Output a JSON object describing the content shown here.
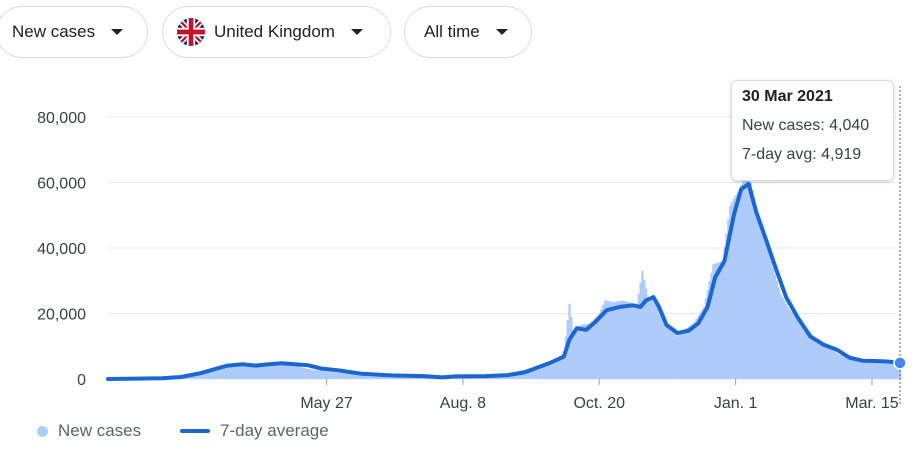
{
  "filters": {
    "metric": "New cases",
    "region": "United Kingdom",
    "range": "All time"
  },
  "tooltip": {
    "date": "30 Mar 2021",
    "new_cases_label": "New cases: ",
    "new_cases_value": "4,040",
    "avg_label": "7-day avg: ",
    "avg_value": "4,919"
  },
  "legend": {
    "bars": "New cases",
    "line": "7-day average"
  },
  "colors": {
    "bars": "#aecbfa",
    "line": "#1a67d2",
    "grid": "#e8eaed"
  },
  "chart_data": {
    "type": "bar",
    "ylim": [
      0,
      80000
    ],
    "ytick_values": [
      0,
      20000,
      40000,
      60000,
      80000
    ],
    "ytick_labels": [
      "0",
      "20,000",
      "40,000",
      "60,000",
      "80,000"
    ],
    "xrange": [
      "2020-01-31",
      "2021-03-30"
    ],
    "xticks": [
      {
        "date": "2020-05-27",
        "label": "May 27"
      },
      {
        "date": "2020-08-08",
        "label": "Aug. 8"
      },
      {
        "date": "2020-10-20",
        "label": "Oct. 20"
      },
      {
        "date": "2021-01-01",
        "label": "Jan. 1"
      },
      {
        "date": "2021-03-15",
        "label": "Mar. 15"
      }
    ],
    "series": [
      {
        "name": "New cases",
        "kind": "bar",
        "points": [
          [
            "2020-01-31",
            0
          ],
          [
            "2020-02-20",
            100
          ],
          [
            "2020-03-05",
            250
          ],
          [
            "2020-03-15",
            800
          ],
          [
            "2020-03-25",
            2200
          ],
          [
            "2020-04-04",
            3900
          ],
          [
            "2020-04-10",
            4700
          ],
          [
            "2020-04-18",
            4500
          ],
          [
            "2020-04-25",
            4300
          ],
          [
            "2020-05-01",
            5000
          ],
          [
            "2020-05-07",
            4700
          ],
          [
            "2020-05-13",
            3600
          ],
          [
            "2020-05-20",
            2800
          ],
          [
            "2020-06-01",
            2000
          ],
          [
            "2020-06-15",
            1300
          ],
          [
            "2020-07-01",
            900
          ],
          [
            "2020-07-15",
            650
          ],
          [
            "2020-07-22",
            500
          ],
          [
            "2020-08-01",
            800
          ],
          [
            "2020-08-15",
            1000
          ],
          [
            "2020-09-01",
            1500
          ],
          [
            "2020-09-10",
            2900
          ],
          [
            "2020-09-20",
            4300
          ],
          [
            "2020-09-28",
            6500
          ],
          [
            "2020-10-01",
            8000
          ],
          [
            "2020-10-04",
            23000
          ],
          [
            "2020-10-06",
            15000
          ],
          [
            "2020-10-10",
            16500
          ],
          [
            "2020-10-15",
            17000
          ],
          [
            "2020-10-20",
            20000
          ],
          [
            "2020-10-23",
            24000
          ],
          [
            "2020-10-28",
            23500
          ],
          [
            "2020-11-01",
            24000
          ],
          [
            "2020-11-05",
            23500
          ],
          [
            "2020-11-09",
            22500
          ],
          [
            "2020-11-12",
            33000
          ],
          [
            "2020-11-15",
            25000
          ],
          [
            "2020-11-20",
            23000
          ],
          [
            "2020-11-25",
            17000
          ],
          [
            "2020-12-01",
            13000
          ],
          [
            "2020-12-05",
            15000
          ],
          [
            "2020-12-10",
            17500
          ],
          [
            "2020-12-15",
            22000
          ],
          [
            "2020-12-18",
            30000
          ],
          [
            "2020-12-20",
            35000
          ],
          [
            "2020-12-25",
            36000
          ],
          [
            "2020-12-29",
            53000
          ],
          [
            "2021-01-01",
            56000
          ],
          [
            "2021-01-03",
            58000
          ],
          [
            "2021-01-06",
            62000
          ],
          [
            "2021-01-09",
            60000
          ],
          [
            "2021-01-12",
            53000
          ],
          [
            "2021-01-16",
            43000
          ],
          [
            "2021-01-20",
            36000
          ],
          [
            "2021-01-25",
            26000
          ],
          [
            "2021-01-30",
            21000
          ],
          [
            "2021-02-05",
            17500
          ],
          [
            "2021-02-10",
            14000
          ],
          [
            "2021-02-15",
            11000
          ],
          [
            "2021-02-20",
            10000
          ],
          [
            "2021-02-25",
            7500
          ],
          [
            "2021-03-05",
            6000
          ],
          [
            "2021-03-10",
            5700
          ],
          [
            "2021-03-15",
            5300
          ],
          [
            "2021-03-20",
            5800
          ],
          [
            "2021-03-25",
            5200
          ],
          [
            "2021-03-30",
            4040
          ]
        ]
      },
      {
        "name": "7-day average",
        "kind": "line",
        "points": [
          [
            "2020-01-31",
            0
          ],
          [
            "2020-02-29",
            200
          ],
          [
            "2020-03-10",
            600
          ],
          [
            "2020-03-20",
            1700
          ],
          [
            "2020-03-28",
            3000
          ],
          [
            "2020-04-04",
            4100
          ],
          [
            "2020-04-12",
            4500
          ],
          [
            "2020-04-19",
            4100
          ],
          [
            "2020-04-26",
            4500
          ],
          [
            "2020-05-03",
            4800
          ],
          [
            "2020-05-10",
            4500
          ],
          [
            "2020-05-17",
            4200
          ],
          [
            "2020-05-24",
            3200
          ],
          [
            "2020-06-03",
            2600
          ],
          [
            "2020-06-15",
            1600
          ],
          [
            "2020-07-01",
            1100
          ],
          [
            "2020-07-18",
            900
          ],
          [
            "2020-07-28",
            500
          ],
          [
            "2020-08-04",
            800
          ],
          [
            "2020-08-20",
            900
          ],
          [
            "2020-09-01",
            1200
          ],
          [
            "2020-09-10",
            2000
          ],
          [
            "2020-09-17",
            3500
          ],
          [
            "2020-09-24",
            5000
          ],
          [
            "2020-10-01",
            6800
          ],
          [
            "2020-10-04",
            12000
          ],
          [
            "2020-10-08",
            15500
          ],
          [
            "2020-10-13",
            15000
          ],
          [
            "2020-10-18",
            17500
          ],
          [
            "2020-10-24",
            21000
          ],
          [
            "2020-10-31",
            22000
          ],
          [
            "2020-11-07",
            22500
          ],
          [
            "2020-11-11",
            22000
          ],
          [
            "2020-11-14",
            24000
          ],
          [
            "2020-11-18",
            25000
          ],
          [
            "2020-11-21",
            22000
          ],
          [
            "2020-11-25",
            16500
          ],
          [
            "2020-12-01",
            14000
          ],
          [
            "2020-12-07",
            14800
          ],
          [
            "2020-12-12",
            17000
          ],
          [
            "2020-12-17",
            22000
          ],
          [
            "2020-12-21",
            31000
          ],
          [
            "2020-12-26",
            36000
          ],
          [
            "2020-12-31",
            50000
          ],
          [
            "2021-01-04",
            58000
          ],
          [
            "2021-01-08",
            59500
          ],
          [
            "2021-01-12",
            51000
          ],
          [
            "2021-01-17",
            43000
          ],
          [
            "2021-01-23",
            33000
          ],
          [
            "2021-01-28",
            25000
          ],
          [
            "2021-02-03",
            19000
          ],
          [
            "2021-02-10",
            13000
          ],
          [
            "2021-02-17",
            10500
          ],
          [
            "2021-02-24",
            9000
          ],
          [
            "2021-03-03",
            6500
          ],
          [
            "2021-03-10",
            5600
          ],
          [
            "2021-03-17",
            5500
          ],
          [
            "2021-03-24",
            5300
          ],
          [
            "2021-03-30",
            4919
          ]
        ]
      }
    ]
  }
}
